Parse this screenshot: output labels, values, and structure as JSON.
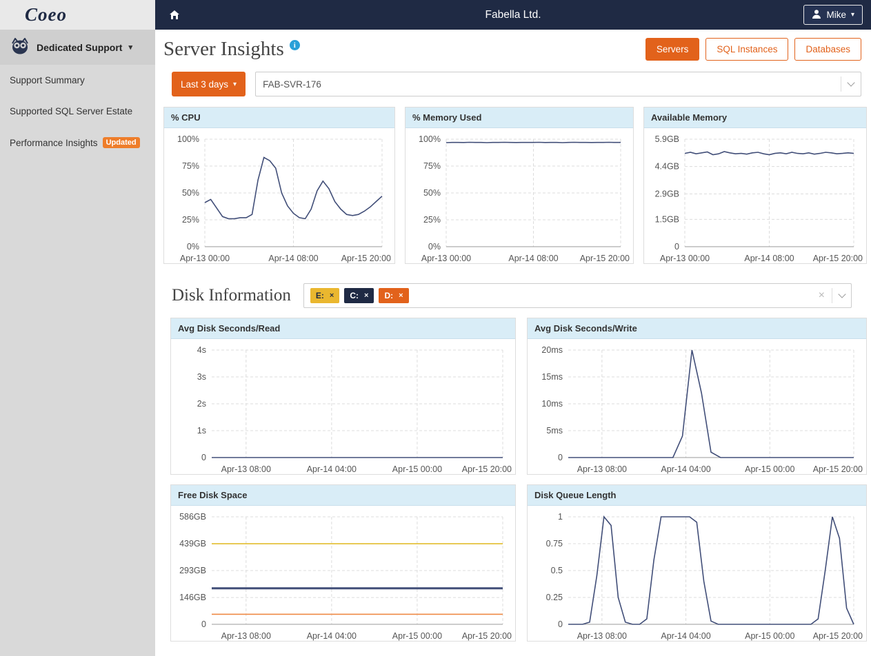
{
  "icons": {
    "caret_down": "▾",
    "close": "×",
    "info": "i"
  },
  "colors": {
    "accent_orange": "#e2621b",
    "navy": "#1f2a44",
    "card_header_bg": "#d9edf7",
    "line_navy": "#414e78"
  },
  "sidebar": {
    "logo": "Coeo",
    "section_label": "Dedicated Support",
    "items": [
      {
        "label": "Support Summary",
        "badge": ""
      },
      {
        "label": "Supported SQL Server Estate",
        "badge": ""
      },
      {
        "label": "Performance Insights",
        "badge": "Updated"
      }
    ]
  },
  "topbar": {
    "company": "Fabella Ltd.",
    "user_label": "Mike"
  },
  "header": {
    "title": "Server Insights",
    "tabs": [
      {
        "label": "Servers",
        "active": true
      },
      {
        "label": "SQL Instances",
        "active": false
      },
      {
        "label": "Databases",
        "active": false
      }
    ]
  },
  "filters": {
    "range_label": "Last 3 days",
    "server_selected": "FAB-SVR-176"
  },
  "disk_section": {
    "title": "Disk Information",
    "tags": [
      {
        "label": "E:",
        "bg": "#eab72f",
        "fg": "#1f2a44"
      },
      {
        "label": "C:",
        "bg": "#1f2a44",
        "fg": "#ffffff"
      },
      {
        "label": "D:",
        "bg": "#e2621b",
        "fg": "#ffffff"
      }
    ]
  },
  "chart_data": [
    {
      "type": "line",
      "title": "% CPU",
      "ymin": 0,
      "ymax": 100,
      "yticks": [
        {
          "v": 0,
          "label": "0%"
        },
        {
          "v": 25,
          "label": "25%"
        },
        {
          "v": 50,
          "label": "50%"
        },
        {
          "v": 75,
          "label": "75%"
        },
        {
          "v": 100,
          "label": "100%"
        }
      ],
      "xticks": [
        {
          "pos": 0,
          "label": "Apr-13 00:00"
        },
        {
          "pos": 0.5,
          "label": "Apr-14 08:00"
        },
        {
          "pos": 1,
          "label": "Apr-15 20:00"
        }
      ],
      "series": [
        {
          "name": "% CPU",
          "color": "#414e78",
          "values": [
            41,
            44,
            36,
            28,
            26,
            26,
            27,
            27,
            30,
            62,
            83,
            80,
            73,
            50,
            38,
            31,
            27,
            26,
            35,
            52,
            61,
            54,
            42,
            35,
            30,
            29,
            30,
            33,
            37,
            42,
            47
          ]
        }
      ]
    },
    {
      "type": "line",
      "title": "% Memory Used",
      "ymin": 0,
      "ymax": 100,
      "yticks": [
        {
          "v": 0,
          "label": "0%"
        },
        {
          "v": 25,
          "label": "25%"
        },
        {
          "v": 50,
          "label": "50%"
        },
        {
          "v": 75,
          "label": "75%"
        },
        {
          "v": 100,
          "label": "100%"
        }
      ],
      "xticks": [
        {
          "pos": 0,
          "label": "Apr-13 00:00"
        },
        {
          "pos": 0.5,
          "label": "Apr-14 08:00"
        },
        {
          "pos": 1,
          "label": "Apr-15 20:00"
        }
      ],
      "series": [
        {
          "name": "% Memory Used",
          "color": "#414e78",
          "values": [
            96.8,
            97,
            97,
            96.9,
            97.1,
            97,
            97,
            96.8,
            97,
            97,
            97.1,
            97,
            96.9,
            97,
            97,
            97,
            97.1,
            96.9,
            97,
            97,
            96.8,
            97,
            97.1,
            97,
            97,
            96.9,
            97,
            97,
            97.1,
            97,
            97
          ]
        }
      ]
    },
    {
      "type": "line",
      "title": "Available Memory",
      "ymin": 0,
      "ymax": 5.9,
      "yticks": [
        {
          "v": 0,
          "label": "0"
        },
        {
          "v": 1.5,
          "label": "1.5GB"
        },
        {
          "v": 2.9,
          "label": "2.9GB"
        },
        {
          "v": 4.4,
          "label": "4.4GB"
        },
        {
          "v": 5.9,
          "label": "5.9GB"
        }
      ],
      "xticks": [
        {
          "pos": 0,
          "label": "Apr-13 00:00"
        },
        {
          "pos": 0.5,
          "label": "Apr-14 08:00"
        },
        {
          "pos": 1,
          "label": "Apr-15 20:00"
        }
      ],
      "series": [
        {
          "name": "Available Memory",
          "color": "#414e78",
          "values": [
            5.12,
            5.18,
            5.1,
            5.15,
            5.2,
            5.05,
            5.1,
            5.22,
            5.15,
            5.1,
            5.12,
            5.08,
            5.15,
            5.18,
            5.1,
            5.05,
            5.12,
            5.15,
            5.1,
            5.18,
            5.12,
            5.1,
            5.15,
            5.08,
            5.12,
            5.18,
            5.15,
            5.1,
            5.12,
            5.15,
            5.12
          ]
        }
      ]
    },
    {
      "type": "line",
      "title": "Avg Disk Seconds/Read",
      "ymin": 0,
      "ymax": 4,
      "yticks": [
        {
          "v": 0,
          "label": "0"
        },
        {
          "v": 1,
          "label": "1s"
        },
        {
          "v": 2,
          "label": "2s"
        },
        {
          "v": 3,
          "label": "3s"
        },
        {
          "v": 4,
          "label": "4s"
        }
      ],
      "xticks": [
        {
          "pos": 0.118,
          "label": "Apr-13 08:00"
        },
        {
          "pos": 0.412,
          "label": "Apr-14 04:00"
        },
        {
          "pos": 0.706,
          "label": "Apr-15 00:00"
        },
        {
          "pos": 1,
          "label": "Apr-15 20:00"
        }
      ],
      "series": [
        {
          "name": "Avg Disk Seconds/Read",
          "color": "#414e78",
          "values": [
            0,
            0
          ]
        }
      ]
    },
    {
      "type": "line",
      "title": "Avg Disk Seconds/Write",
      "ymin": 0,
      "ymax": 20,
      "yticks": [
        {
          "v": 0,
          "label": "0"
        },
        {
          "v": 5,
          "label": "5ms"
        },
        {
          "v": 10,
          "label": "10ms"
        },
        {
          "v": 15,
          "label": "15ms"
        },
        {
          "v": 20,
          "label": "20ms"
        }
      ],
      "xticks": [
        {
          "pos": 0.118,
          "label": "Apr-13 08:00"
        },
        {
          "pos": 0.412,
          "label": "Apr-14 04:00"
        },
        {
          "pos": 0.706,
          "label": "Apr-15 00:00"
        },
        {
          "pos": 1,
          "label": "Apr-15 20:00"
        }
      ],
      "series": [
        {
          "name": "Avg Disk Seconds/Write",
          "color": "#414e78",
          "values": [
            0,
            0,
            0,
            0,
            0,
            0,
            0,
            0,
            0,
            0,
            0,
            0,
            4,
            20,
            12,
            1,
            0,
            0,
            0,
            0,
            0,
            0,
            0,
            0,
            0,
            0,
            0,
            0,
            0,
            0,
            0
          ]
        }
      ]
    },
    {
      "type": "line",
      "title": "Free Disk Space",
      "ymin": 0,
      "ymax": 586,
      "yticks": [
        {
          "v": 0,
          "label": "0"
        },
        {
          "v": 146,
          "label": "146GB"
        },
        {
          "v": 293,
          "label": "293GB"
        },
        {
          "v": 439,
          "label": "439GB"
        },
        {
          "v": 586,
          "label": "586GB"
        }
      ],
      "xticks": [
        {
          "pos": 0.118,
          "label": "Apr-13 08:00"
        },
        {
          "pos": 0.412,
          "label": "Apr-14 04:00"
        },
        {
          "pos": 0.706,
          "label": "Apr-15 00:00"
        },
        {
          "pos": 1,
          "label": "Apr-15 20:00"
        }
      ],
      "series": [
        {
          "name": "E:",
          "color": "#e3bd2d",
          "values": [
            439,
            439
          ]
        },
        {
          "name": "C:",
          "color": "#414e78",
          "width": 3,
          "values": [
            196,
            196
          ]
        },
        {
          "name": "D:",
          "color": "#ef8843",
          "values": [
            55,
            55
          ]
        }
      ]
    },
    {
      "type": "line",
      "title": "Disk Queue Length",
      "ymin": 0,
      "ymax": 1,
      "yticks": [
        {
          "v": 0,
          "label": "0"
        },
        {
          "v": 0.25,
          "label": "0.25"
        },
        {
          "v": 0.5,
          "label": "0.5"
        },
        {
          "v": 0.75,
          "label": "0.75"
        },
        {
          "v": 1,
          "label": "1"
        }
      ],
      "xticks": [
        {
          "pos": 0.118,
          "label": "Apr-13 08:00"
        },
        {
          "pos": 0.412,
          "label": "Apr-14 04:00"
        },
        {
          "pos": 0.706,
          "label": "Apr-15 00:00"
        },
        {
          "pos": 1,
          "label": "Apr-15 20:00"
        }
      ],
      "series": [
        {
          "name": "Disk Queue Length",
          "color": "#414e78",
          "values": [
            0,
            0,
            0,
            0.02,
            0.45,
            1,
            0.92,
            0.25,
            0.02,
            0,
            0,
            0.05,
            0.6,
            1,
            1,
            1,
            1,
            1,
            0.95,
            0.4,
            0.03,
            0,
            0,
            0,
            0,
            0,
            0,
            0,
            0,
            0,
            0,
            0,
            0,
            0,
            0,
            0.05,
            0.5,
            1,
            0.8,
            0.15,
            0
          ]
        }
      ]
    }
  ]
}
